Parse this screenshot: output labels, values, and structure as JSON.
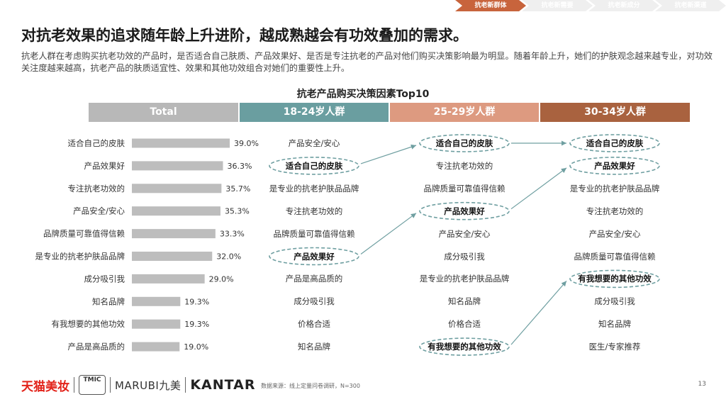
{
  "nav": {
    "steps": [
      "抗老新群体",
      "抗老新需要",
      "抗老新成分",
      "抗老新渠道"
    ]
  },
  "headline": "对抗老效果的追求随年龄上升进阶，越成熟越会有功效叠加的需求。",
  "description": "抗老人群在考虑购买抗老功效的产品时，是否适合自己肤质、产品效果好、是否是专注抗老的产品对他们购买决策影响最为明显。随着年龄上升，她们的护肤观念越来越专业，对功效关注度越来越高，抗老产品的肤质适宜性、效果和其他功效组合对她们的重要性上升。",
  "colors": {
    "grey_header": "#b8b8b8",
    "teal": "#6a9ea0",
    "salmon": "#dd9a80",
    "brown": "#a9623f",
    "bar": "#bdbdbd",
    "dashed": "#6f9fa1"
  },
  "columns": [
    {
      "label": "Total"
    },
    {
      "label": "18-24岁人群",
      "items": [
        "产品安全/安心",
        "适合自己的皮肤",
        "是专业的抗老护肤品品牌",
        "专注抗老功效的",
        "品牌质量可靠值得信赖",
        "产品效果好",
        "产品是高品质的",
        "成分吸引我",
        "价格合适",
        "知名品牌"
      ],
      "highlights": [
        1,
        5
      ]
    },
    {
      "label": "25-29岁人群",
      "items": [
        "适合自己的皮肤",
        "专注抗老功效的",
        "品牌质量可靠值得信赖",
        "产品效果好",
        "产品安全/安心",
        "成分吸引我",
        "是专业的抗老护肤品品牌",
        "知名品牌",
        "价格合适",
        "有我想要的其他功效"
      ],
      "highlights": [
        0,
        3,
        9
      ]
    },
    {
      "label": "30-34岁人群",
      "items": [
        "适合自己的皮肤",
        "产品效果好",
        "是专业的抗老护肤品品牌",
        "专注抗老功效的",
        "产品安全/安心",
        "品牌质量可靠值得信赖",
        "有我想要的其他功效",
        "成分吸引我",
        "知名品牌",
        "医生/专家推荐"
      ],
      "highlights": [
        0,
        1,
        6
      ]
    }
  ],
  "chart_data": {
    "type": "bar",
    "orientation": "horizontal",
    "title": "抗老产品购买决策因素Top10",
    "categories": [
      "适合自己的皮肤",
      "产品效果好",
      "专注抗老功效的",
      "产品安全/安心",
      "品牌质量可靠值得信赖",
      "是专业的抗老护肤品品牌",
      "成分吸引我",
      "知名品牌",
      "有我想要的其他功效",
      "产品是高品质的"
    ],
    "values": [
      39.0,
      36.3,
      35.7,
      35.3,
      33.3,
      32.0,
      29.0,
      19.3,
      19.3,
      19.0
    ],
    "value_labels": [
      "39.0%",
      "36.3%",
      "35.7%",
      "35.3%",
      "33.3%",
      "32.0%",
      "29.0%",
      "19.3%",
      "19.3%",
      "19.0%"
    ],
    "xlim": [
      0,
      45
    ]
  },
  "footer": {
    "logo_tmall": "天猫美妆",
    "logo_tmic": "TMIC",
    "logo_marubi": "MARUBI九美",
    "logo_kantar": "KANTAR",
    "source": "数据来源：线上定量问卷调研，N=300",
    "page": "13"
  }
}
